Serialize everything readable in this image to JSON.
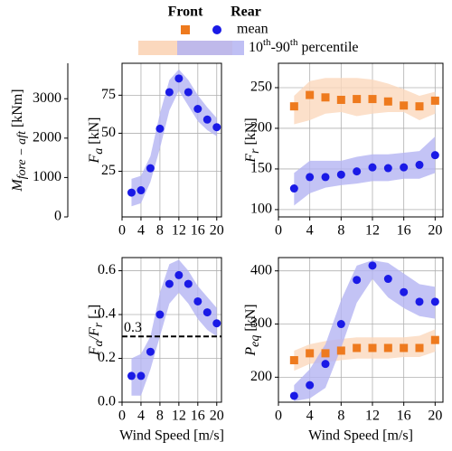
{
  "legend": {
    "rows": [
      "mean",
      [
        "10",
        "th",
        "-90",
        "th",
        " percentile"
      ]
    ]
  },
  "chart_data": [
    {
      "type": "scatter",
      "x": [
        2,
        4,
        6,
        8,
        10,
        12,
        14,
        16,
        18,
        20
      ],
      "xlim": [
        0,
        21
      ],
      "xticks": [
        0,
        4,
        8,
        12,
        16,
        20
      ],
      "ylim": [
        -5,
        96
      ],
      "yticks": [
        25,
        50,
        75
      ],
      "ylabel": {
        "symbol": "F",
        "sub": "a",
        "unit": " [kN]"
      },
      "y2lim": [
        0,
        3900
      ],
      "y2ticks": [
        0,
        1000,
        2000,
        3000
      ],
      "y2label": {
        "symbol": "M",
        "sub": "fore − aft",
        "unit": " [kNm]"
      },
      "grid": true,
      "series": [
        {
          "name": "Rear",
          "color": "#1a1ae6",
          "band_color": "#b4b4f2",
          "values": [
            11,
            12.5,
            27,
            53,
            77,
            86,
            77,
            66,
            59,
            54
          ],
          "lower": [
            2,
            4,
            18,
            40,
            65,
            78,
            68,
            58,
            52,
            48
          ],
          "upper": [
            20,
            22,
            35,
            63,
            85,
            92,
            85,
            75,
            67,
            60
          ]
        }
      ]
    },
    {
      "type": "scatter",
      "x": [
        2,
        4,
        6,
        8,
        10,
        12,
        14,
        16,
        18,
        20
      ],
      "xlim": [
        0,
        21
      ],
      "xticks": [
        0,
        4,
        8,
        12,
        16,
        20
      ],
      "ylim": [
        91,
        280
      ],
      "yticks": [
        100,
        150,
        200,
        250
      ],
      "ylabel": {
        "symbol": "F",
        "sub": "r",
        "unit": " [kN]"
      },
      "grid": true,
      "series": [
        {
          "name": "Front",
          "color": "#ee7a1e",
          "band_color": "#fbd8bd",
          "values": [
            227,
            241,
            238,
            235,
            236,
            236,
            233,
            228,
            227,
            234
          ],
          "lower": [
            205,
            210,
            218,
            220,
            215,
            218,
            220,
            220,
            210,
            218
          ],
          "upper": [
            240,
            258,
            262,
            262,
            262,
            260,
            255,
            248,
            240,
            245
          ]
        },
        {
          "name": "Rear",
          "color": "#1a1ae6",
          "band_color": "#b4b4f2",
          "values": [
            126,
            140,
            140,
            143,
            147,
            152,
            151,
            152,
            155,
            167
          ],
          "lower": [
            105,
            120,
            127,
            130,
            132,
            135,
            135,
            138,
            138,
            145
          ],
          "upper": [
            145,
            160,
            160,
            160,
            165,
            168,
            168,
            170,
            172,
            190
          ]
        }
      ]
    },
    {
      "type": "scatter",
      "x": [
        2,
        4,
        6,
        8,
        10,
        12,
        14,
        16,
        18,
        20
      ],
      "xlim": [
        0,
        21
      ],
      "xticks": [
        0,
        4,
        8,
        12,
        16,
        20
      ],
      "ylim": [
        0,
        0.66
      ],
      "yticks": [
        {
          "value": 0,
          "label": "0.0"
        },
        0.2,
        0.4,
        0.6
      ],
      "ylabel": {
        "symbol": "F",
        "sub": "a",
        "unit": "/F",
        "sub2": "r",
        "unit2": " [-]"
      },
      "xlabel": "Wind Speed [m/s]",
      "hline": 0.3,
      "grid": true,
      "series": [
        {
          "name": "Rear",
          "color": "#1a1ae6",
          "band_color": "#b4b4f2",
          "values": [
            0.12,
            0.12,
            0.23,
            0.4,
            0.54,
            0.58,
            0.54,
            0.46,
            0.41,
            0.36
          ],
          "lower": [
            0.03,
            0.03,
            0.15,
            0.3,
            0.45,
            0.5,
            0.45,
            0.38,
            0.33,
            0.3
          ],
          "upper": [
            0.2,
            0.22,
            0.3,
            0.5,
            0.63,
            0.65,
            0.6,
            0.53,
            0.48,
            0.43
          ]
        }
      ]
    },
    {
      "type": "scatter",
      "x": [
        2,
        4,
        6,
        8,
        10,
        12,
        14,
        16,
        18,
        20
      ],
      "xlim": [
        0,
        21
      ],
      "xticks": [
        0,
        4,
        8,
        12,
        16,
        20
      ],
      "ylim": [
        153,
        425
      ],
      "yticks": [
        200,
        300,
        400
      ],
      "ylabel": {
        "symbol": "P",
        "sub": "eq",
        "unit": " [kN]"
      },
      "xlabel": "Wind Speed [m/s]",
      "grid": true,
      "series": [
        {
          "name": "Front",
          "color": "#ee7a1e",
          "band_color": "#fbd8bd",
          "values": [
            232,
            245,
            245,
            250,
            255,
            255,
            255,
            255,
            255,
            270
          ],
          "lower": [
            212,
            225,
            228,
            232,
            235,
            235,
            235,
            238,
            238,
            248
          ],
          "upper": [
            250,
            262,
            268,
            272,
            275,
            275,
            275,
            275,
            278,
            290
          ]
        },
        {
          "name": "Rear",
          "color": "#1a1ae6",
          "band_color": "#b4b4f2",
          "values": [
            165,
            185,
            225,
            300,
            383,
            410,
            385,
            360,
            342,
            342
          ],
          "lower": [
            155,
            160,
            180,
            255,
            340,
            385,
            350,
            330,
            315,
            310
          ],
          "upper": [
            185,
            215,
            262,
            345,
            410,
            420,
            415,
            395,
            375,
            370
          ]
        }
      ]
    }
  ]
}
